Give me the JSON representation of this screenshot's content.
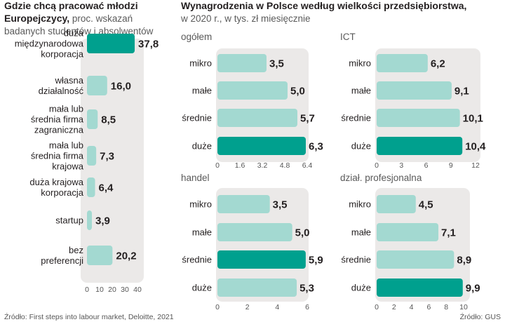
{
  "colors": {
    "highlight": "#00a08e",
    "bar": "#a3d9d1",
    "panel_bg": "#ebe9e8",
    "text": "#231f20",
    "muted": "#5a5a5a"
  },
  "left": {
    "title_bold": [
      "Gdzie chcą pracować młodzi",
      "Europejczycy,"
    ],
    "title_rest": " proc. wskazań",
    "title_line3": "badanych studentów i absolwentów"
  },
  "right": {
    "title_bold": "Wynagrodzenia w Polsce według wielkości przedsiębiorstwa,",
    "title_rest": "w 2020 r., w tys. zł miesięcznie"
  },
  "chart_data": [
    {
      "type": "bar",
      "orientation": "horizontal",
      "title": "Gdzie chcą pracować młodzi Europejczycy, proc. wskazań badanych studentów i absolwentów",
      "categories": [
        [
          "duża",
          "międzynarodowa",
          "korporacja"
        ],
        [
          "własna",
          "działalność"
        ],
        [
          "mała lub",
          "średnia firma",
          "zagraniczna"
        ],
        [
          "mała lub",
          "średnia firma",
          "krajowa"
        ],
        [
          "duża krajowa",
          "korporacja"
        ],
        [
          "startup"
        ],
        [
          "bez",
          "preferencji"
        ]
      ],
      "values": [
        37.8,
        16.0,
        8.5,
        7.3,
        6.4,
        3.9,
        20.2
      ],
      "value_labels": [
        "37,8",
        "16,0",
        "8,5",
        "7,3",
        "6,4",
        "3,9",
        "20,2"
      ],
      "highlight": [
        true,
        false,
        false,
        false,
        false,
        false,
        false
      ],
      "xlim": [
        0,
        40
      ],
      "xticks": [
        "0",
        "10",
        "20",
        "30",
        "40"
      ]
    },
    {
      "type": "bar",
      "orientation": "horizontal",
      "title": "ogółem",
      "categories": [
        "mikro",
        "małe",
        "średnie",
        "duże"
      ],
      "values": [
        3.5,
        5.0,
        5.7,
        6.3
      ],
      "value_labels": [
        "3,5",
        "5,0",
        "5,7",
        "6,3"
      ],
      "highlight": [
        false,
        false,
        false,
        true
      ],
      "xlim": [
        0,
        6.4
      ],
      "xticks": [
        "0",
        "1.6",
        "3.2",
        "4.8",
        "6.4"
      ]
    },
    {
      "type": "bar",
      "orientation": "horizontal",
      "title": "ICT",
      "categories": [
        "mikro",
        "małe",
        "średnie",
        "duże"
      ],
      "values": [
        6.2,
        9.1,
        10.1,
        10.4
      ],
      "value_labels": [
        "6,2",
        "9,1",
        "10,1",
        "10,4"
      ],
      "highlight": [
        false,
        false,
        false,
        true
      ],
      "xlim": [
        0,
        12
      ],
      "xticks": [
        "0",
        "3",
        "6",
        "9",
        "12"
      ]
    },
    {
      "type": "bar",
      "orientation": "horizontal",
      "title": "handel",
      "categories": [
        "mikro",
        "małe",
        "średnie",
        "duże"
      ],
      "values": [
        3.5,
        5.0,
        5.9,
        5.3
      ],
      "value_labels": [
        "3,5",
        "5,0",
        "5,9",
        "5,3"
      ],
      "highlight": [
        false,
        false,
        true,
        false
      ],
      "xlim": [
        0,
        6
      ],
      "xticks": [
        "0",
        "2",
        "4",
        "6"
      ]
    },
    {
      "type": "bar",
      "orientation": "horizontal",
      "title": "dział. profesjonalna",
      "categories": [
        "mikro",
        "małe",
        "średnie",
        "duże"
      ],
      "values": [
        4.5,
        7.1,
        8.9,
        9.9
      ],
      "value_labels": [
        "4,5",
        "7,1",
        "8,9",
        "9,9"
      ],
      "highlight": [
        false,
        false,
        false,
        true
      ],
      "xlim": [
        0,
        10
      ],
      "xticks": [
        "0",
        "2",
        "4",
        "6",
        "8",
        "10"
      ]
    }
  ],
  "footer": {
    "left": "Źródło:  First steps into labour market, Deloitte, 2021",
    "right": "Źródło: GUS"
  }
}
